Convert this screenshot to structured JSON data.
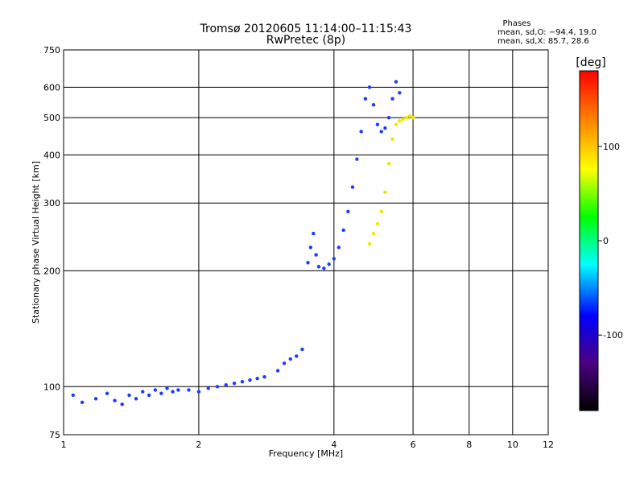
{
  "chart_data": {
    "type": "scatter",
    "title": "Tromsø 20120605 11:14:00–11:15:43",
    "subtitle": "RwPretec (8p)",
    "xlabel": "Frequency [MHz]",
    "ylabel": "Stationary phase Virtual Height [km]",
    "x_scale": "log",
    "y_scale": "log",
    "xlim": [
      1,
      12
    ],
    "ylim": [
      75,
      750
    ],
    "x_ticks": [
      1,
      2,
      4,
      6,
      8,
      10,
      12
    ],
    "y_ticks": [
      75,
      100,
      200,
      300,
      400,
      500,
      600,
      750
    ],
    "grid": true,
    "phases_title": "Phases",
    "phases_o": "mean, sd,O: −94.4, 19.0",
    "phases_x": "mean, sd,X:  85.7, 28.6",
    "colorbar": {
      "label": "[deg]",
      "range": [
        -180,
        180
      ],
      "ticks": [
        -100,
        0,
        100
      ],
      "colors": [
        "#000000",
        "#4b0082",
        "#0000ff",
        "#00ffff",
        "#00ff00",
        "#ffff00",
        "#ff7f00",
        "#ff0000"
      ]
    },
    "series": [
      {
        "name": "O",
        "color": "#1a3cff",
        "points": [
          [
            1.05,
            95
          ],
          [
            1.1,
            91
          ],
          [
            1.18,
            93
          ],
          [
            1.25,
            96
          ],
          [
            1.3,
            92
          ],
          [
            1.35,
            90
          ],
          [
            1.4,
            95
          ],
          [
            1.45,
            93
          ],
          [
            1.5,
            97
          ],
          [
            1.55,
            95
          ],
          [
            1.6,
            98
          ],
          [
            1.65,
            96
          ],
          [
            1.7,
            99
          ],
          [
            1.75,
            97
          ],
          [
            1.8,
            98
          ],
          [
            1.9,
            98
          ],
          [
            2.0,
            97
          ],
          [
            2.1,
            99
          ],
          [
            2.2,
            100
          ],
          [
            2.3,
            101
          ],
          [
            2.4,
            102
          ],
          [
            2.5,
            103
          ],
          [
            2.6,
            104
          ],
          [
            2.7,
            105
          ],
          [
            2.8,
            106
          ],
          [
            3.0,
            110
          ],
          [
            3.1,
            115
          ],
          [
            3.2,
            118
          ],
          [
            3.3,
            120
          ],
          [
            3.4,
            125
          ],
          [
            3.5,
            210
          ],
          [
            3.55,
            230
          ],
          [
            3.6,
            250
          ],
          [
            3.65,
            220
          ],
          [
            3.7,
            205
          ],
          [
            3.8,
            203
          ],
          [
            3.9,
            208
          ],
          [
            4.0,
            215
          ],
          [
            4.1,
            230
          ],
          [
            4.2,
            255
          ],
          [
            4.3,
            285
          ],
          [
            4.4,
            330
          ],
          [
            4.5,
            390
          ],
          [
            4.6,
            460
          ],
          [
            4.7,
            560
          ],
          [
            4.8,
            600
          ],
          [
            4.9,
            540
          ],
          [
            5.0,
            480
          ],
          [
            5.1,
            460
          ],
          [
            5.2,
            470
          ],
          [
            5.3,
            500
          ],
          [
            5.4,
            560
          ],
          [
            5.5,
            620
          ],
          [
            5.6,
            580
          ]
        ]
      },
      {
        "name": "X",
        "color": "#f2e600",
        "points": [
          [
            4.8,
            235
          ],
          [
            4.9,
            250
          ],
          [
            5.0,
            265
          ],
          [
            5.1,
            285
          ],
          [
            5.2,
            320
          ],
          [
            5.3,
            380
          ],
          [
            5.4,
            440
          ],
          [
            5.5,
            480
          ],
          [
            5.6,
            490
          ],
          [
            5.7,
            495
          ],
          [
            5.8,
            500
          ],
          [
            5.9,
            505
          ],
          [
            6.0,
            500
          ]
        ]
      }
    ]
  }
}
